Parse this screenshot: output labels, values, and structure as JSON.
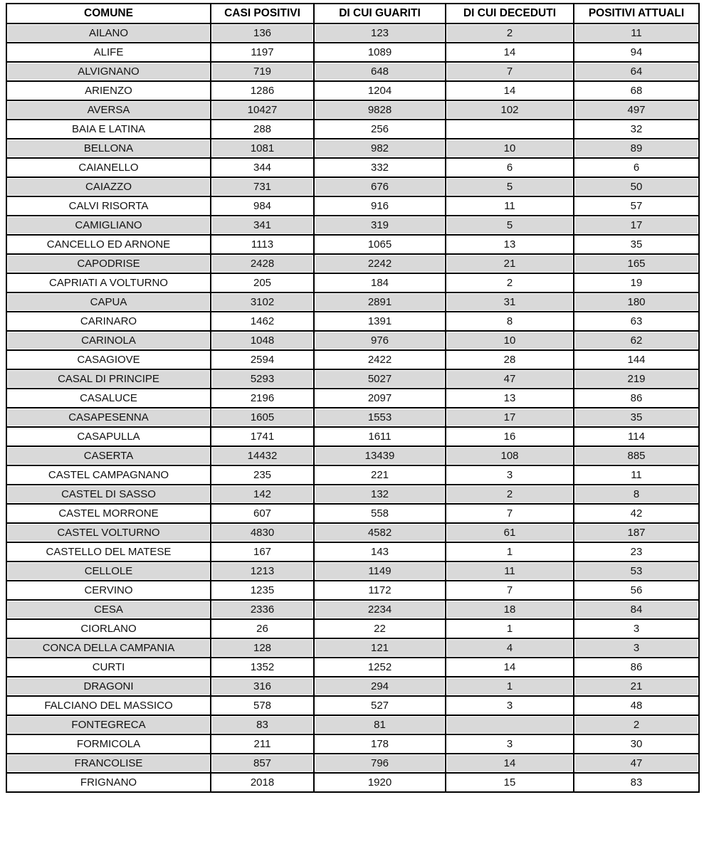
{
  "table": {
    "columns": [
      "COMUNE",
      "CASI POSITIVI",
      "DI CUI GUARITI",
      "DI CUI DECEDUTI",
      "POSITIVI ATTUALI"
    ],
    "rows": [
      [
        "AILANO",
        "136",
        "123",
        "2",
        "11"
      ],
      [
        "ALIFE",
        "1197",
        "1089",
        "14",
        "94"
      ],
      [
        "ALVIGNANO",
        "719",
        "648",
        "7",
        "64"
      ],
      [
        "ARIENZO",
        "1286",
        "1204",
        "14",
        "68"
      ],
      [
        "AVERSA",
        "10427",
        "9828",
        "102",
        "497"
      ],
      [
        "BAIA E LATINA",
        "288",
        "256",
        "",
        "32"
      ],
      [
        "BELLONA",
        "1081",
        "982",
        "10",
        "89"
      ],
      [
        "CAIANELLO",
        "344",
        "332",
        "6",
        "6"
      ],
      [
        "CAIAZZO",
        "731",
        "676",
        "5",
        "50"
      ],
      [
        "CALVI RISORTA",
        "984",
        "916",
        "11",
        "57"
      ],
      [
        "CAMIGLIANO",
        "341",
        "319",
        "5",
        "17"
      ],
      [
        "CANCELLO ED ARNONE",
        "1113",
        "1065",
        "13",
        "35"
      ],
      [
        "CAPODRISE",
        "2428",
        "2242",
        "21",
        "165"
      ],
      [
        "CAPRIATI A VOLTURNO",
        "205",
        "184",
        "2",
        "19"
      ],
      [
        "CAPUA",
        "3102",
        "2891",
        "31",
        "180"
      ],
      [
        "CARINARO",
        "1462",
        "1391",
        "8",
        "63"
      ],
      [
        "CARINOLA",
        "1048",
        "976",
        "10",
        "62"
      ],
      [
        "CASAGIOVE",
        "2594",
        "2422",
        "28",
        "144"
      ],
      [
        "CASAL DI PRINCIPE",
        "5293",
        "5027",
        "47",
        "219"
      ],
      [
        "CASALUCE",
        "2196",
        "2097",
        "13",
        "86"
      ],
      [
        "CASAPESENNA",
        "1605",
        "1553",
        "17",
        "35"
      ],
      [
        "CASAPULLA",
        "1741",
        "1611",
        "16",
        "114"
      ],
      [
        "CASERTA",
        "14432",
        "13439",
        "108",
        "885"
      ],
      [
        "CASTEL CAMPAGNANO",
        "235",
        "221",
        "3",
        "11"
      ],
      [
        "CASTEL DI SASSO",
        "142",
        "132",
        "2",
        "8"
      ],
      [
        "CASTEL MORRONE",
        "607",
        "558",
        "7",
        "42"
      ],
      [
        "CASTEL VOLTURNO",
        "4830",
        "4582",
        "61",
        "187"
      ],
      [
        "CASTELLO DEL MATESE",
        "167",
        "143",
        "1",
        "23"
      ],
      [
        "CELLOLE",
        "1213",
        "1149",
        "11",
        "53"
      ],
      [
        "CERVINO",
        "1235",
        "1172",
        "7",
        "56"
      ],
      [
        "CESA",
        "2336",
        "2234",
        "18",
        "84"
      ],
      [
        "CIORLANO",
        "26",
        "22",
        "1",
        "3"
      ],
      [
        "CONCA DELLA CAMPANIA",
        "128",
        "121",
        "4",
        "3"
      ],
      [
        "CURTI",
        "1352",
        "1252",
        "14",
        "86"
      ],
      [
        "DRAGONI",
        "316",
        "294",
        "1",
        "21"
      ],
      [
        "FALCIANO DEL MASSICO",
        "578",
        "527",
        "3",
        "48"
      ],
      [
        "FONTEGRECA",
        "83",
        "81",
        "",
        "2"
      ],
      [
        "FORMICOLA",
        "211",
        "178",
        "3",
        "30"
      ],
      [
        "FRANCOLISE",
        "857",
        "796",
        "14",
        "47"
      ],
      [
        "FRIGNANO",
        "2018",
        "1920",
        "15",
        "83"
      ]
    ]
  },
  "colors": {
    "row_alt_background": "#d9d9d9",
    "row_background": "#ffffff",
    "border": "#000000",
    "text": "#111111"
  }
}
